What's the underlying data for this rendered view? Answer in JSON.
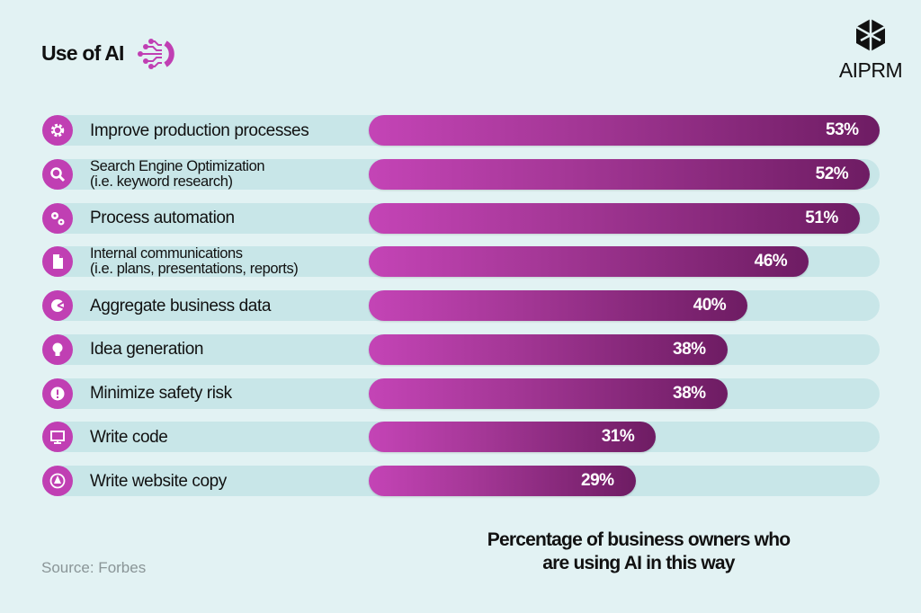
{
  "header": {
    "title": "Use of AI",
    "brand": "AIPRM"
  },
  "colors": {
    "bar_start": "#c444b6",
    "bar_end": "#6e1c63",
    "track": "#c8e6e8",
    "background": "#e2f2f3",
    "icon_bg": "#c03fb3"
  },
  "chart_data": {
    "type": "bar",
    "orientation": "horizontal",
    "categories": [
      {
        "line1": "Improve production processes",
        "line2": "",
        "icon": "gear-icon"
      },
      {
        "line1": "Search Engine Optimization",
        "line2": "(i.e. keyword research)",
        "icon": "search-icon"
      },
      {
        "line1": "Process automation",
        "line2": "",
        "icon": "gears-icon"
      },
      {
        "line1": "Internal communications",
        "line2": "(i.e. plans, presentations, reports)",
        "icon": "document-icon"
      },
      {
        "line1": "Aggregate business data",
        "line2": "",
        "icon": "pie-chart-icon"
      },
      {
        "line1": "Idea generation",
        "line2": "",
        "icon": "lightbulb-icon"
      },
      {
        "line1": "Minimize safety risk",
        "line2": "",
        "icon": "warning-icon"
      },
      {
        "line1": "Write code",
        "line2": "",
        "icon": "monitor-icon"
      },
      {
        "line1": "Write website copy",
        "line2": "",
        "icon": "pen-nib-icon"
      }
    ],
    "values": [
      53,
      52,
      51,
      46,
      40,
      38,
      38,
      31,
      29
    ],
    "value_labels": [
      "53%",
      "52%",
      "51%",
      "46%",
      "40%",
      "38%",
      "38%",
      "31%",
      "29%"
    ],
    "unit": "%",
    "xlabel": "Percentage of business owners who are using AI in this way",
    "grid": false
  },
  "footer": {
    "source": "Source: Forbes",
    "caption_line1": "Percentage of business owners who",
    "caption_line2": "are using AI in this way"
  }
}
